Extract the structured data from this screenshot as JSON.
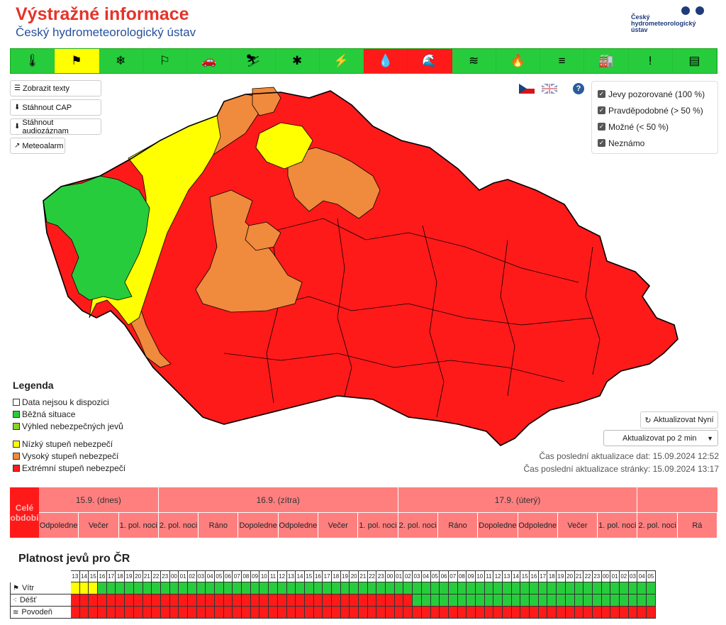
{
  "header": {
    "title": "Výstražné informace",
    "subtitle": "Český hydrometeorologický ústav",
    "logo_text": [
      "Český",
      "hydrometeorologický",
      "ústav"
    ]
  },
  "phenomena_bar": [
    {
      "icon": "thermometer-icon",
      "glyph": "🌡",
      "color": "green"
    },
    {
      "icon": "wind-flag-icon",
      "glyph": "⚑",
      "color": "yellow"
    },
    {
      "icon": "snow-icon",
      "glyph": "❄",
      "color": "green"
    },
    {
      "icon": "snowstorm-icon",
      "glyph": "⚐",
      "color": "green"
    },
    {
      "icon": "road-ice-icon",
      "glyph": "🚗",
      "color": "green"
    },
    {
      "icon": "avalanche-icon",
      "glyph": "⛷",
      "color": "green"
    },
    {
      "icon": "frost-icon",
      "glyph": "✱",
      "color": "green"
    },
    {
      "icon": "thunderstorm-icon",
      "glyph": "⚡",
      "color": "green"
    },
    {
      "icon": "rain-icon",
      "glyph": "💧",
      "color": "red"
    },
    {
      "icon": "flood-icon",
      "glyph": "🌊",
      "color": "red"
    },
    {
      "icon": "water-level-icon",
      "glyph": "≋",
      "color": "green"
    },
    {
      "icon": "fire-icon",
      "glyph": "🔥",
      "color": "green"
    },
    {
      "icon": "fog-icon",
      "glyph": "≡",
      "color": "green"
    },
    {
      "icon": "smog-icon",
      "glyph": "🏭",
      "color": "green"
    },
    {
      "icon": "warning-icon",
      "glyph": "!",
      "color": "green"
    },
    {
      "icon": "calendar-icon",
      "glyph": "▤",
      "color": "green"
    }
  ],
  "buttons": {
    "show_texts": "Zobrazit texty",
    "download_cap": "Stáhnout CAP",
    "download_audio": "Stáhnout audiozáznam",
    "meteoalarm": "Meteoalarm"
  },
  "filters": [
    {
      "label": "Jevy pozorované (100 %)",
      "checked": true
    },
    {
      "label": "Pravděpodobné (> 50 %)",
      "checked": true
    },
    {
      "label": "Možné (< 50 %)",
      "checked": true
    },
    {
      "label": "Neznámo",
      "checked": true
    }
  ],
  "legend": {
    "title": "Legenda",
    "items": [
      {
        "label": "Data nejsou k dispozici",
        "color": "#ffffff"
      },
      {
        "label": "Běžná situace",
        "color": "#27cc3c"
      },
      {
        "label": "Výhled nebezpečných jevů",
        "color": "#8bd12a"
      },
      {
        "label": "Nízký stupeň nebezpečí",
        "color": "#ffff00"
      },
      {
        "label": "Vysoký stupeň nebezpečí",
        "color": "#f08a3c"
      },
      {
        "label": "Extrémní stupeň nebezpečí",
        "color": "#ff1a1a"
      }
    ]
  },
  "update": {
    "refresh_button": "Aktualizovat Nyní",
    "interval": "Aktualizovat po 2 min",
    "data_time": "Čas poslední aktualizace dat: 15.09.2024 12:52",
    "page_time": "Čas poslední aktualizace stránky: 15.09.2024 13:17"
  },
  "timeline": {
    "whole_period": "Celé období",
    "days": [
      "15.9. (dnes)",
      "16.9. (zítra)",
      "17.9. (úterý)"
    ],
    "slots": [
      "Odpoledne",
      "Večer",
      "1. pol. noci",
      "2. pol. noci",
      "Ráno",
      "Dopoledne",
      "Odpoledne",
      "Večer",
      "1. pol. noci",
      "2. pol. noci",
      "Ráno",
      "Dopoledne",
      "Odpoledne",
      "Večer",
      "1. pol. noci",
      "2. pol. noci",
      "Rá"
    ]
  },
  "validity": {
    "title": "Platnost jevů pro ČR",
    "hours": [
      "13",
      "14",
      "15",
      "16",
      "17",
      "18",
      "19",
      "20",
      "21",
      "22",
      "23",
      "00",
      "01",
      "02",
      "03",
      "04",
      "05",
      "06",
      "07",
      "08",
      "09",
      "10",
      "11",
      "12",
      "13",
      "14",
      "15",
      "16",
      "17",
      "18",
      "19",
      "20",
      "21",
      "22",
      "23",
      "00",
      "01",
      "02",
      "03",
      "04",
      "05",
      "06",
      "07",
      "08",
      "09",
      "10",
      "11",
      "12",
      "13",
      "14",
      "15",
      "16",
      "17",
      "18",
      "19",
      "20",
      "21",
      "22",
      "23",
      "00",
      "01",
      "02",
      "03",
      "04",
      "05"
    ],
    "rows": [
      {
        "label": "Vítr",
        "icon": "wind-flag-icon",
        "yellow_hours": 3,
        "red_hours": 0
      },
      {
        "label": "Déšť",
        "icon": "rain-icon",
        "yellow_hours": 0,
        "red_hours": 38
      },
      {
        "label": "Povodeň",
        "icon": "flood-icon",
        "yellow_hours": 0,
        "red_hours": 65
      }
    ]
  },
  "colors": {
    "green": "#27cc3c",
    "yellow": "#ffff00",
    "orange": "#f08a3c",
    "red": "#ff1a1a",
    "title_red": "#e5332a",
    "brand_blue": "#26509c"
  }
}
